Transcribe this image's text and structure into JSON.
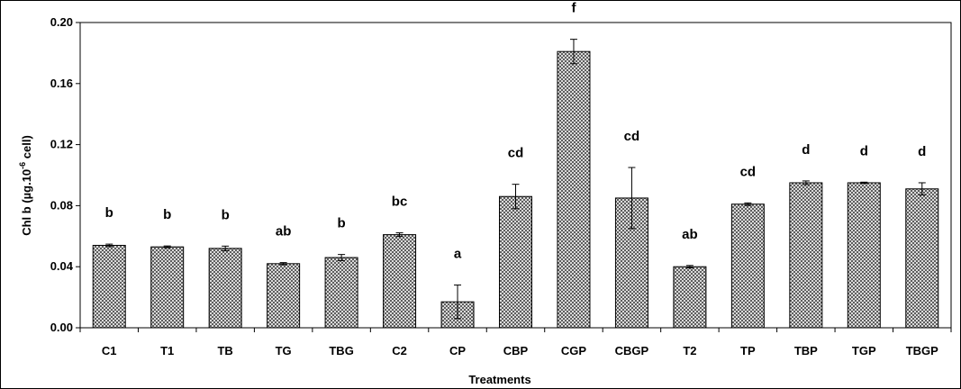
{
  "chart_data": {
    "type": "bar",
    "xlabel": "Treatments",
    "ylabel": {
      "prefix": "Chl b  (µg.10",
      "superscript": "-6",
      "suffix": " cell)"
    },
    "ylim": [
      0,
      0.2
    ],
    "yticks": [
      "0.00",
      "0.04",
      "0.08",
      "0.12",
      "0.16",
      "0.20"
    ],
    "grid": false,
    "legend": "none",
    "bar_pattern": "crosshatch",
    "categories": [
      "C1",
      "T1",
      "TB",
      "TG",
      "TBG",
      "C2",
      "CP",
      "CBP",
      "CGP",
      "CBGP",
      "T2",
      "TP",
      "TBP",
      "TGP",
      "TBGP"
    ],
    "values": [
      0.054,
      0.053,
      0.052,
      0.042,
      0.046,
      0.061,
      0.017,
      0.086,
      0.181,
      0.085,
      0.04,
      0.081,
      0.095,
      0.095,
      0.091
    ],
    "errors": [
      0.0008,
      0.0006,
      0.0015,
      0.0007,
      0.002,
      0.0012,
      0.011,
      0.008,
      0.008,
      0.02,
      0.0008,
      0.0008,
      0.0012,
      0.0004,
      0.004
    ],
    "significance": [
      "b",
      "b",
      "b",
      "ab",
      "b",
      "bc",
      "a",
      "cd",
      "f",
      "cd",
      "ab",
      "cd",
      "d",
      "d",
      "d"
    ]
  }
}
